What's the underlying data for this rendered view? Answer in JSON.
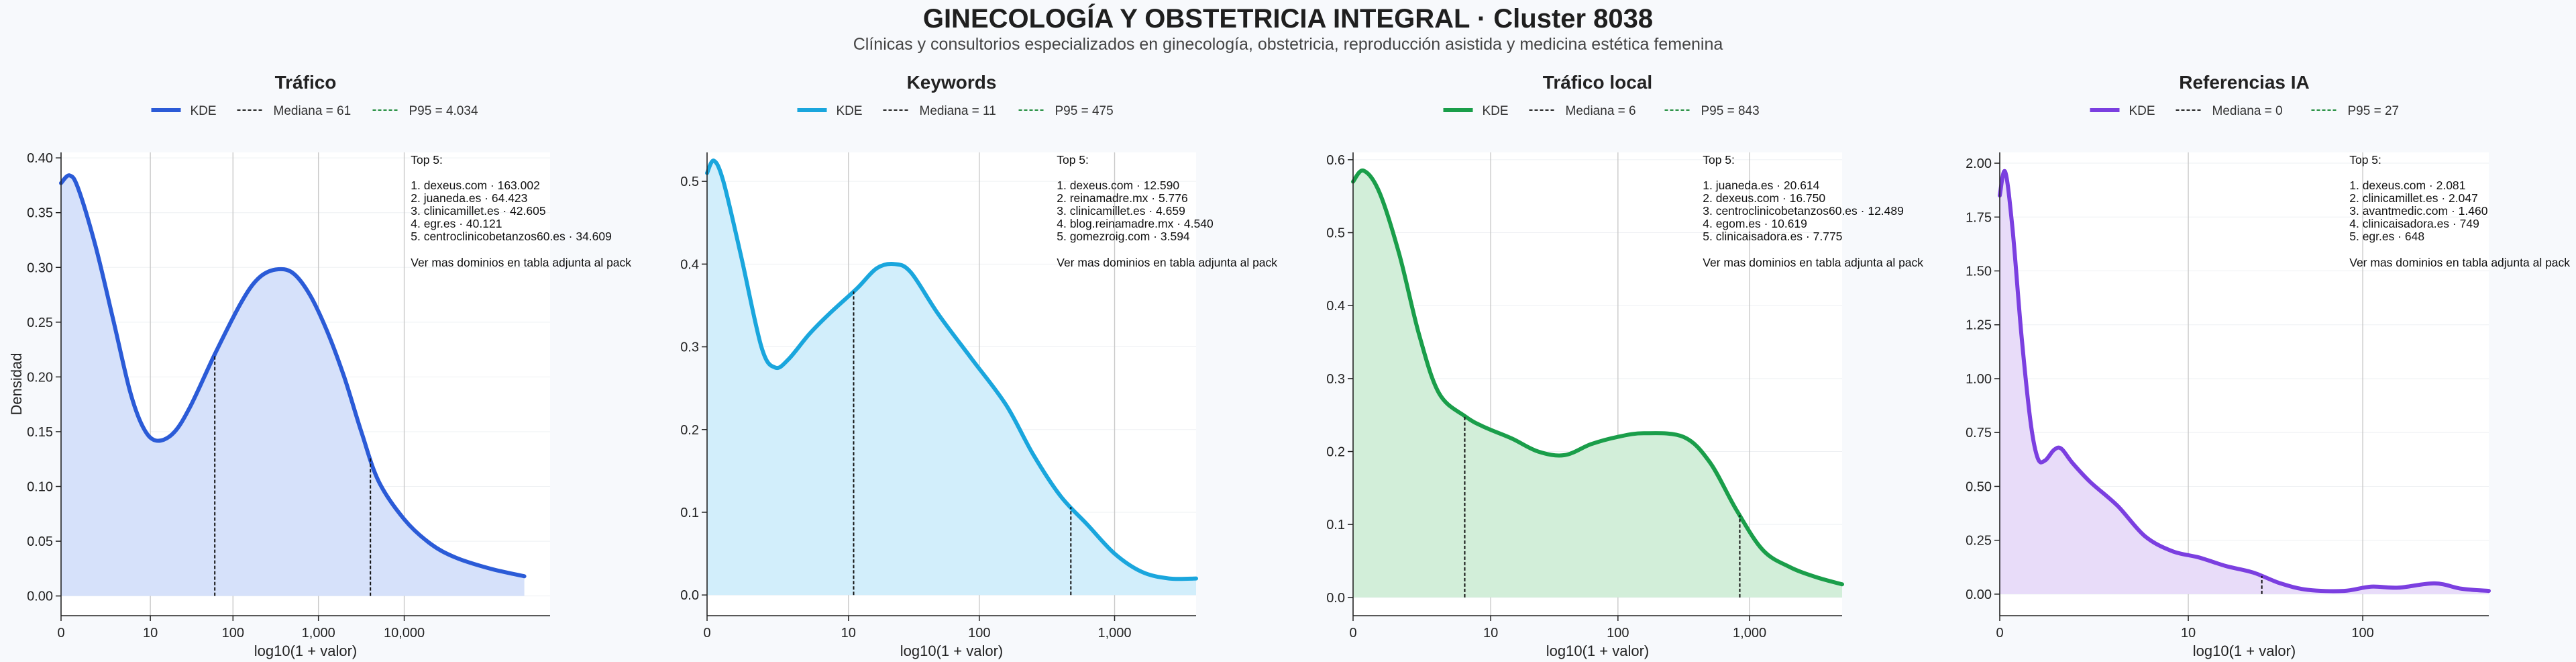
{
  "title": "GINECOLOGÍA Y OBSTETRICIA INTEGRAL · Cluster 8038",
  "subtitle": "Clínicas y consultorios especializados en ginecología, obstetricia, reproducción asistida y medicina estética femenina",
  "ylabel_shared": "Densidad",
  "chart_data": [
    {
      "type": "area",
      "title": "Tráfico",
      "xlabel": "log10(1 + valor)",
      "ylabel": "Densidad",
      "color": "#2b5bd7",
      "fill": "#d6e1fa",
      "legend": {
        "kde": "KDE",
        "median": "Mediana = 61",
        "p95": "P95 = 4.034"
      },
      "legend_position": "top-center",
      "grid": true,
      "xlim": [
        0,
        5.7
      ],
      "ylim": [
        -0.018,
        0.405
      ],
      "x_ticks": [
        {
          "v": 0,
          "label": "0"
        },
        {
          "v": 1.041,
          "label": "10"
        },
        {
          "v": 2.004,
          "label": "100"
        },
        {
          "v": 3.0,
          "label": "1,000"
        },
        {
          "v": 4.0,
          "label": "10,000"
        }
      ],
      "y_ticks": [
        {
          "v": 0,
          "label": "0.00"
        },
        {
          "v": 0.05,
          "label": "0.05"
        },
        {
          "v": 0.1,
          "label": "0.10"
        },
        {
          "v": 0.15,
          "label": "0.15"
        },
        {
          "v": 0.2,
          "label": "0.20"
        },
        {
          "v": 0.25,
          "label": "0.25"
        },
        {
          "v": 0.3,
          "label": "0.30"
        },
        {
          "v": 0.35,
          "label": "0.35"
        },
        {
          "v": 0.4,
          "label": "0.40"
        }
      ],
      "median_x": 1.792,
      "p95_x": 3.606,
      "top_title": "Top 5:",
      "top": [
        "1. dexeus.com · 163.002",
        "2. juaneda.es · 64.423",
        "3. clinicamillet.es · 42.605",
        "4. egr.es · 40.121",
        "5. centroclinicobetanzos60.es · 34.609"
      ],
      "note": "Ver mas dominios en tabla adjunta al pack",
      "kde": [
        [
          0,
          0.377
        ],
        [
          0.1,
          0.384
        ],
        [
          0.2,
          0.372
        ],
        [
          0.4,
          0.32
        ],
        [
          0.6,
          0.255
        ],
        [
          0.8,
          0.188
        ],
        [
          0.95,
          0.155
        ],
        [
          1.1,
          0.142
        ],
        [
          1.3,
          0.148
        ],
        [
          1.5,
          0.172
        ],
        [
          1.8,
          0.222
        ],
        [
          2.1,
          0.268
        ],
        [
          2.3,
          0.29
        ],
        [
          2.5,
          0.298
        ],
        [
          2.7,
          0.295
        ],
        [
          2.9,
          0.275
        ],
        [
          3.1,
          0.242
        ],
        [
          3.3,
          0.2
        ],
        [
          3.5,
          0.15
        ],
        [
          3.7,
          0.105
        ],
        [
          4.0,
          0.07
        ],
        [
          4.3,
          0.048
        ],
        [
          4.6,
          0.035
        ],
        [
          5.0,
          0.025
        ],
        [
          5.4,
          0.018
        ]
      ]
    },
    {
      "type": "area",
      "title": "Keywords",
      "xlabel": "log10(1 + valor)",
      "ylabel": "",
      "color": "#1aa6dd",
      "fill": "#d2eefb",
      "legend": {
        "kde": "KDE",
        "median": "Mediana = 11",
        "p95": "P95 = 475"
      },
      "legend_position": "top-center",
      "grid": true,
      "xlim": [
        0,
        3.6
      ],
      "ylim": [
        -0.025,
        0.535
      ],
      "x_ticks": [
        {
          "v": 0,
          "label": "0"
        },
        {
          "v": 1.041,
          "label": "10"
        },
        {
          "v": 2.004,
          "label": "100"
        },
        {
          "v": 3.0,
          "label": "1,000"
        }
      ],
      "y_ticks": [
        {
          "v": 0,
          "label": "0.0"
        },
        {
          "v": 0.1,
          "label": "0.1"
        },
        {
          "v": 0.2,
          "label": "0.2"
        },
        {
          "v": 0.3,
          "label": "0.3"
        },
        {
          "v": 0.4,
          "label": "0.4"
        },
        {
          "v": 0.5,
          "label": "0.5"
        }
      ],
      "median_x": 1.079,
      "p95_x": 2.678,
      "top_title": "Top 5:",
      "top": [
        "1. dexeus.com · 12.590",
        "2. reinamadre.mx · 5.776",
        "3. clinicamillet.es · 4.659",
        "4. blog.reinamadre.mx · 4.540",
        "5. gomezroig.com · 3.594"
      ],
      "note": "Ver mas dominios en tabla adjunta al pack",
      "kde": [
        [
          0,
          0.51
        ],
        [
          0.05,
          0.525
        ],
        [
          0.12,
          0.5
        ],
        [
          0.25,
          0.41
        ],
        [
          0.4,
          0.3
        ],
        [
          0.5,
          0.275
        ],
        [
          0.6,
          0.285
        ],
        [
          0.75,
          0.315
        ],
        [
          0.9,
          0.34
        ],
        [
          1.1,
          0.37
        ],
        [
          1.25,
          0.395
        ],
        [
          1.38,
          0.4
        ],
        [
          1.5,
          0.39
        ],
        [
          1.7,
          0.34
        ],
        [
          1.95,
          0.285
        ],
        [
          2.2,
          0.23
        ],
        [
          2.4,
          0.17
        ],
        [
          2.6,
          0.12
        ],
        [
          2.8,
          0.085
        ],
        [
          3.0,
          0.05
        ],
        [
          3.2,
          0.028
        ],
        [
          3.4,
          0.02
        ],
        [
          3.6,
          0.02
        ]
      ]
    },
    {
      "type": "area",
      "title": "Tráfico local",
      "xlabel": "log10(1 + valor)",
      "ylabel": "",
      "color": "#1a9e4a",
      "fill": "#d2eed9",
      "legend": {
        "kde": "KDE",
        "median": "Mediana = 6",
        "p95": "P95 = 843"
      },
      "legend_position": "top-center",
      "grid": true,
      "xlim": [
        0,
        3.7
      ],
      "ylim": [
        -0.025,
        0.61
      ],
      "x_ticks": [
        {
          "v": 0,
          "label": "0"
        },
        {
          "v": 1.041,
          "label": "10"
        },
        {
          "v": 2.004,
          "label": "100"
        },
        {
          "v": 3.0,
          "label": "1,000"
        }
      ],
      "y_ticks": [
        {
          "v": 0,
          "label": "0.0"
        },
        {
          "v": 0.1,
          "label": "0.1"
        },
        {
          "v": 0.2,
          "label": "0.2"
        },
        {
          "v": 0.3,
          "label": "0.3"
        },
        {
          "v": 0.4,
          "label": "0.4"
        },
        {
          "v": 0.5,
          "label": "0.5"
        },
        {
          "v": 0.6,
          "label": "0.6"
        }
      ],
      "median_x": 0.845,
      "p95_x": 2.926,
      "top_title": "Top 5:",
      "top": [
        "1. juaneda.es · 20.614",
        "2. dexeus.com · 16.750",
        "3. centroclinicobetanzos60.es · 12.489",
        "4. egom.es · 10.619",
        "5. clinicaisadora.es · 7.775"
      ],
      "note": "Ver mas dominios en tabla adjunta al pack",
      "kde": [
        [
          0,
          0.57
        ],
        [
          0.08,
          0.585
        ],
        [
          0.2,
          0.555
        ],
        [
          0.35,
          0.47
        ],
        [
          0.5,
          0.36
        ],
        [
          0.65,
          0.28
        ],
        [
          0.85,
          0.248
        ],
        [
          1.0,
          0.233
        ],
        [
          1.2,
          0.218
        ],
        [
          1.4,
          0.2
        ],
        [
          1.6,
          0.195
        ],
        [
          1.8,
          0.21
        ],
        [
          2.0,
          0.22
        ],
        [
          2.2,
          0.225
        ],
        [
          2.5,
          0.22
        ],
        [
          2.7,
          0.185
        ],
        [
          2.9,
          0.12
        ],
        [
          3.1,
          0.065
        ],
        [
          3.3,
          0.042
        ],
        [
          3.5,
          0.028
        ],
        [
          3.7,
          0.018
        ]
      ]
    },
    {
      "type": "area",
      "title": "Referencias IA",
      "xlabel": "log10(1 + valor)",
      "ylabel": "",
      "color": "#7b3fe0",
      "fill": "#e8dcf9",
      "legend": {
        "kde": "KDE",
        "median": "Mediana = 0",
        "p95": "P95 = 27"
      },
      "legend_position": "top-center",
      "grid": true,
      "xlim": [
        0,
        2.7
      ],
      "ylim": [
        -0.1,
        2.05
      ],
      "x_ticks": [
        {
          "v": 0,
          "label": "0"
        },
        {
          "v": 1.041,
          "label": "10"
        },
        {
          "v": 2.004,
          "label": "100"
        }
      ],
      "y_ticks": [
        {
          "v": 0,
          "label": "0.00"
        },
        {
          "v": 0.25,
          "label": "0.25"
        },
        {
          "v": 0.5,
          "label": "0.50"
        },
        {
          "v": 0.75,
          "label": "0.75"
        },
        {
          "v": 1.0,
          "label": "1.00"
        },
        {
          "v": 1.25,
          "label": "1.25"
        },
        {
          "v": 1.5,
          "label": "1.50"
        },
        {
          "v": 1.75,
          "label": "1.75"
        },
        {
          "v": 2.0,
          "label": "2.00"
        }
      ],
      "median_x": 0.0,
      "p95_x": 1.447,
      "top_title": "Top 5:",
      "top": [
        "1. dexeus.com · 2.081",
        "2. clinicamillet.es · 2.047",
        "3. avantmedic.com · 1.460",
        "4. clinicaisadora.es · 749",
        "5. egr.es · 648"
      ],
      "note": "Ver mas dominios en tabla adjunta al pack",
      "kde": [
        [
          0,
          1.85
        ],
        [
          0.03,
          1.96
        ],
        [
          0.07,
          1.7
        ],
        [
          0.12,
          1.2
        ],
        [
          0.17,
          0.8
        ],
        [
          0.21,
          0.63
        ],
        [
          0.25,
          0.62
        ],
        [
          0.3,
          0.67
        ],
        [
          0.34,
          0.675
        ],
        [
          0.4,
          0.61
        ],
        [
          0.5,
          0.52
        ],
        [
          0.65,
          0.41
        ],
        [
          0.8,
          0.27
        ],
        [
          0.95,
          0.2
        ],
        [
          1.1,
          0.17
        ],
        [
          1.25,
          0.13
        ],
        [
          1.4,
          0.1
        ],
        [
          1.55,
          0.05
        ],
        [
          1.7,
          0.02
        ],
        [
          1.9,
          0.015
        ],
        [
          2.05,
          0.035
        ],
        [
          2.2,
          0.03
        ],
        [
          2.4,
          0.05
        ],
        [
          2.55,
          0.025
        ],
        [
          2.7,
          0.015
        ]
      ]
    }
  ]
}
